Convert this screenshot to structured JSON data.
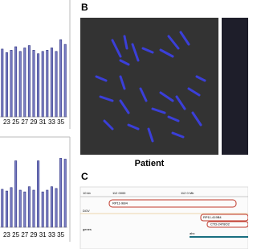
{
  "panels": {
    "b_label": "B",
    "c_label": "C",
    "b_caption": "Patient"
  },
  "charts": [
    {
      "type": "bar",
      "categories": [
        null,
        "23",
        null,
        "25",
        null,
        "27",
        null,
        "29",
        null,
        "31",
        null,
        "33",
        null,
        "35",
        null
      ],
      "values": [
        58,
        55,
        57,
        60,
        56,
        59,
        61,
        57,
        54,
        56,
        57,
        59,
        56,
        66,
        62
      ],
      "ylim": [
        0,
        100
      ],
      "color": "#7b7fc4"
    },
    {
      "type": "bar",
      "categories": [
        null,
        "23",
        null,
        "25",
        null,
        "27",
        null,
        "29",
        null,
        "31",
        null,
        "33",
        null,
        "35",
        null
      ],
      "values": [
        44,
        42,
        46,
        77,
        43,
        41,
        47,
        43,
        77,
        41,
        43,
        47,
        45,
        80,
        79
      ],
      "ylim": [
        0,
        100
      ],
      "color": "#7b7fc4"
    }
  ],
  "browser": {
    "scale": "10 kb",
    "ruler": [
      "112 0000",
      "112 0 Mb"
    ],
    "tracks": [
      "RP11-98I4",
      "RP11-419B4",
      "CTD-2478O2"
    ],
    "rows": [
      "DGV",
      "genes"
    ],
    "gene": "abc"
  }
}
